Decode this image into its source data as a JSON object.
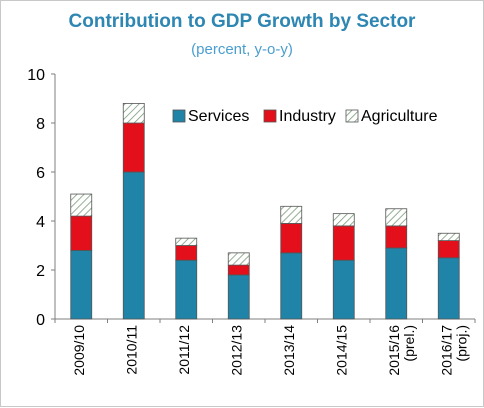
{
  "chart_data": {
    "type": "bar",
    "stacked": true,
    "title": "Contribution to GDP Growth by Sector",
    "subtitle": "(percent, y-o-y)",
    "categories": [
      "2009/10",
      "2010/11",
      "2011/12",
      "2012/13",
      "2013/14",
      "2014/15",
      "2015/16 (prel.)",
      "2016/17 (proj.)"
    ],
    "category_lines": [
      [
        "2009/10"
      ],
      [
        "2010/11"
      ],
      [
        "2011/12"
      ],
      [
        "2012/13"
      ],
      [
        "2013/14"
      ],
      [
        "2014/15"
      ],
      [
        "2015/16",
        "(prel.)"
      ],
      [
        "2016/17",
        "(proj.)"
      ]
    ],
    "series": [
      {
        "name": "Services",
        "color": "#1f84a8",
        "values": [
          2.8,
          6.0,
          2.4,
          1.8,
          2.7,
          2.4,
          2.9,
          2.5
        ]
      },
      {
        "name": "Industry",
        "color": "#e3101c",
        "values": [
          1.4,
          2.0,
          0.6,
          0.4,
          1.2,
          1.4,
          0.9,
          0.7
        ]
      },
      {
        "name": "Agriculture",
        "color": "#ffffff",
        "pattern": "hatched",
        "values": [
          0.9,
          0.8,
          0.3,
          0.5,
          0.7,
          0.5,
          0.7,
          0.3
        ]
      }
    ],
    "ylim": [
      0,
      10
    ],
    "yticks": [
      0,
      2,
      4,
      6,
      8,
      10
    ],
    "grid": false,
    "legend_position": "top-right",
    "xlabel": "",
    "ylabel": ""
  }
}
